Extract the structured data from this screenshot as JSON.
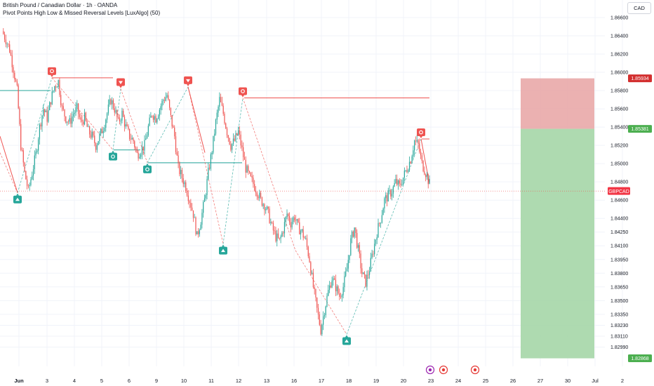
{
  "header": {
    "title": "British Pound / Canadian Dollar · 1h · OANDA",
    "indicator": "Pivot Points High Low & Missed Reversal Levels [LuxAlgo] (50)"
  },
  "currency": "CAD",
  "colors": {
    "up": "#26a69a",
    "down": "#ef5350",
    "grid": "#f0f3fa",
    "stop_zone": "#e8a3a3",
    "target_zone": "#a5d6a7",
    "text": "#131722",
    "price_tag_red": "#d32f2f",
    "price_tag_green": "#4caf50",
    "symbol_tag": "#f23645"
  },
  "chart_data": {
    "type": "candlestick",
    "symbol": "GBPCAD",
    "y_axis": {
      "range": [
        1.8278,
        1.86715
      ],
      "ticks": [
        "1.86600",
        "1.86400",
        "1.86200",
        "1.86000",
        "1.85800",
        "1.85600",
        "1.85400",
        "1.85200",
        "1.85000",
        "1.84800",
        "1.84600",
        "1.84400",
        "1.84250",
        "1.84100",
        "1.83950",
        "1.83800",
        "1.83650",
        "1.83500",
        "1.83350",
        "1.83230",
        "1.83110",
        "1.82990"
      ]
    },
    "x_axis": {
      "ticks": [
        "Jun",
        "3",
        "4",
        "5",
        "6",
        "9",
        "10",
        "11",
        "12",
        "13",
        "16",
        "17",
        "18",
        "19",
        "20",
        "23",
        "24",
        "25",
        "26",
        "27",
        "30",
        "Jul",
        "2"
      ]
    },
    "price_labels": {
      "stop_level": "1.85934",
      "entry_level": "1.85381",
      "current_symbol": "GBPCAD",
      "target_level": "1.82868"
    },
    "series": [
      {
        "name": "GBPCAD",
        "close_path": [
          1.8645,
          1.8636,
          1.8625,
          1.8604,
          1.858,
          1.852,
          1.849,
          1.847,
          1.849,
          1.851,
          1.854,
          1.856,
          1.855,
          1.857,
          1.8585,
          1.859,
          1.856,
          1.855,
          1.8545,
          1.8555,
          1.856,
          1.8545,
          1.855,
          1.8535,
          1.853,
          1.852,
          1.853,
          1.854,
          1.8555,
          1.857,
          1.856,
          1.8545,
          1.8555,
          1.854,
          1.853,
          1.8525,
          1.851,
          1.8515,
          1.852,
          1.854,
          1.8555,
          1.855,
          1.856,
          1.857,
          1.8575,
          1.855,
          1.853,
          1.8495,
          1.8485,
          1.8475,
          1.846,
          1.8445,
          1.842,
          1.8438,
          1.846,
          1.849,
          1.8515,
          1.8545,
          1.857,
          1.8555,
          1.8535,
          1.852,
          1.8525,
          1.8535,
          1.8515,
          1.8495,
          1.8485,
          1.8478,
          1.847,
          1.846,
          1.8455,
          1.8445,
          1.843,
          1.842,
          1.8415,
          1.8428,
          1.8445,
          1.8435,
          1.8442,
          1.843,
          1.8425,
          1.8415,
          1.8395,
          1.8365,
          1.834,
          1.8318,
          1.834,
          1.836,
          1.8375,
          1.8365,
          1.8355,
          1.8365,
          1.8385,
          1.8415,
          1.843,
          1.8405,
          1.838,
          1.837,
          1.8385,
          1.8405,
          1.8425,
          1.844,
          1.846,
          1.8465,
          1.847,
          1.848,
          1.8475,
          1.8485,
          1.8495,
          1.8505,
          1.8525,
          1.852,
          1.85,
          1.849,
          1.8478
        ],
        "pivot_highs": [
          {
            "time": "Jun 3",
            "value": 1.8594
          },
          {
            "time": "Jun 5",
            "value": 1.8582
          },
          {
            "time": "Jun 10",
            "value": 1.8584
          },
          {
            "time": "Jun 12",
            "value": 1.8572
          },
          {
            "time": "Jun 23",
            "value": 1.8527
          }
        ],
        "pivot_lows": [
          {
            "time": "Jun 2",
            "value": 1.8468
          },
          {
            "time": "Jun 6",
            "value": 1.8515
          },
          {
            "time": "Jun 9",
            "value": 1.8501
          },
          {
            "time": "Jun 11",
            "value": 1.8412
          },
          {
            "time": "Jun 18",
            "value": 1.8313
          }
        ]
      }
    ],
    "position_tool": {
      "stop": 1.85934,
      "entry": 1.85381,
      "target": 1.82868
    },
    "current_price": 1.847,
    "grid": true
  }
}
